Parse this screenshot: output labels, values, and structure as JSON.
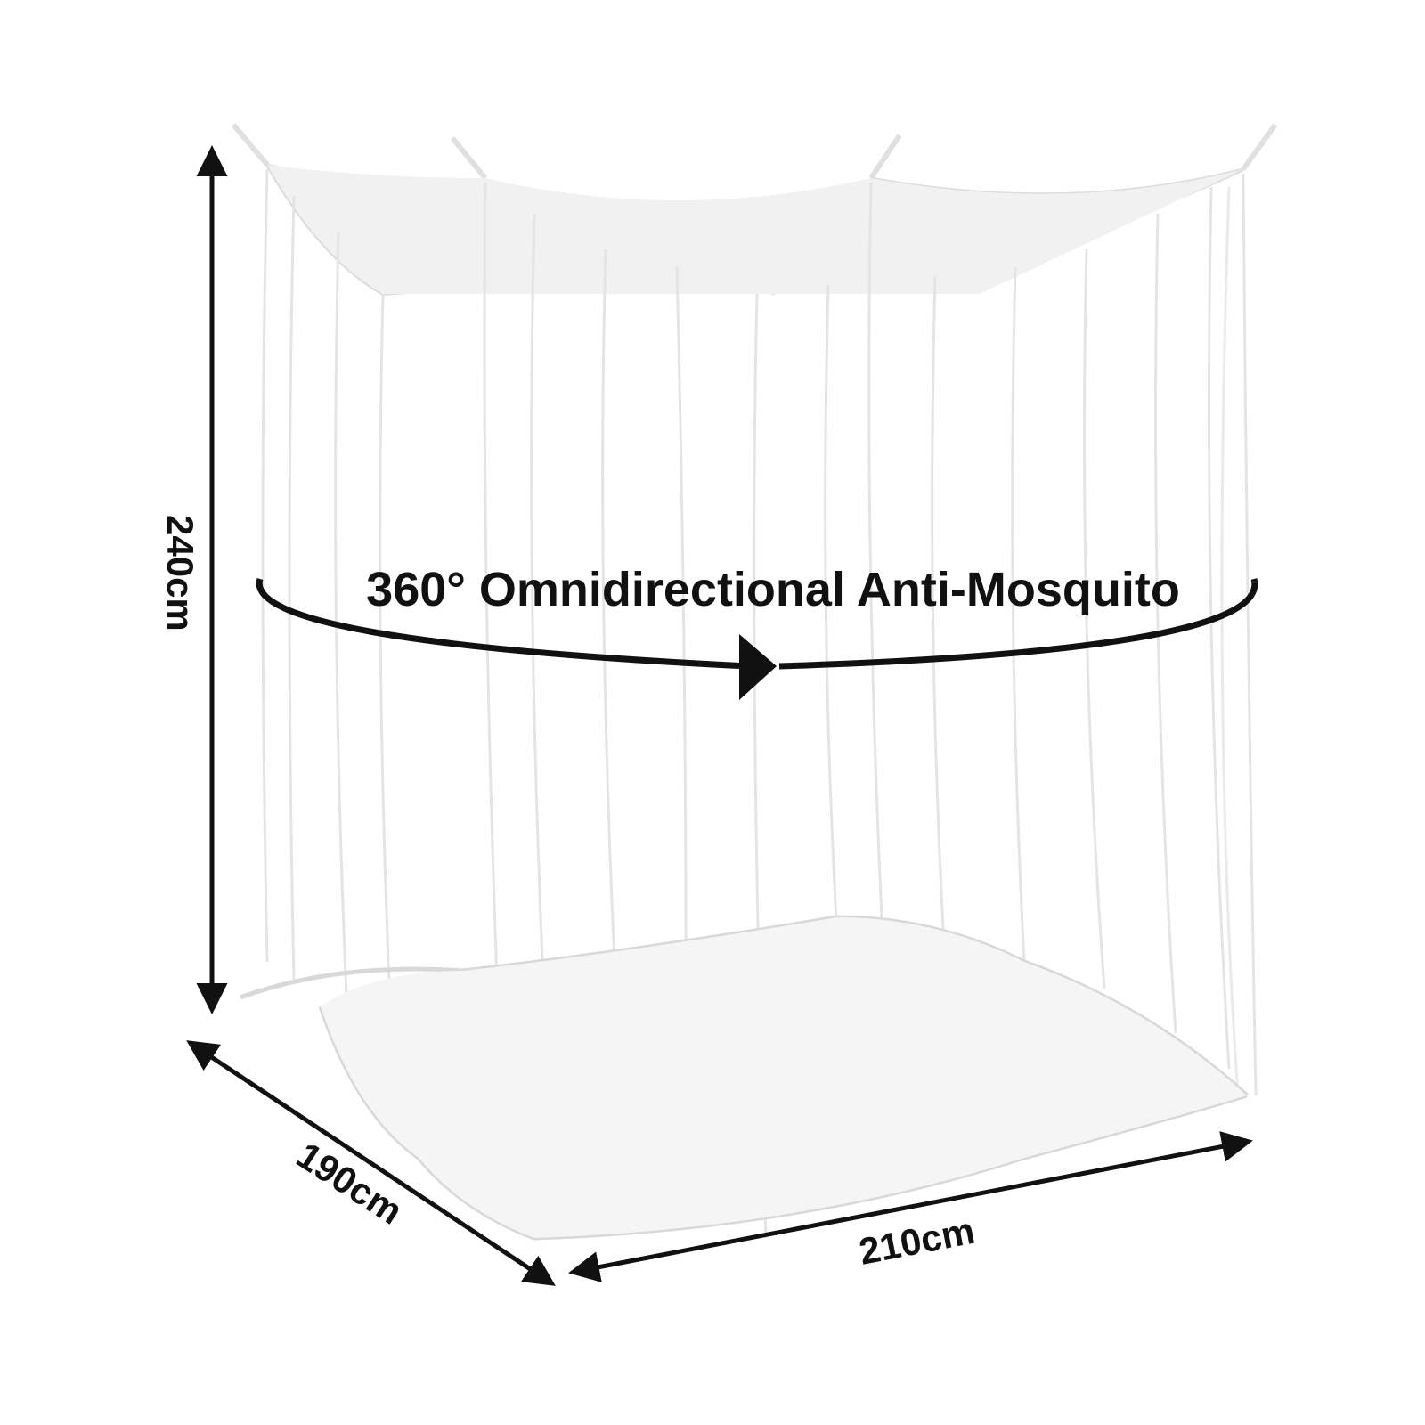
{
  "product_image": {
    "colors": {
      "background": "#ffffff",
      "net": "#e6e6e6",
      "net_shadow": "#d4d4d4",
      "ink": "#111111"
    },
    "labels": {
      "height": "240cm",
      "depth": "190cm",
      "width": "210cm",
      "feature": "360° Omnidirectional Anti-Mosquito"
    }
  }
}
